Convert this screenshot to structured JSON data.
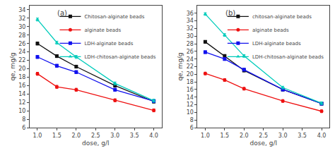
{
  "chart_data": [
    {
      "type": "line",
      "xlabel": "dose, g/l",
      "ylabel": "qe, mg/g",
      "annotations": [
        {
          "text": "(a)"
        }
      ],
      "x": [
        1.0,
        1.5,
        2.0,
        3.0,
        4.0
      ],
      "series": [
        {
          "name": "Chitosan-alginate beads",
          "color": "#111111",
          "marker": "square",
          "values": [
            26.0,
            23.0,
            20.5,
            16.0,
            12.2
          ],
          "errors": [
            0.35,
            0.35,
            0.35,
            0.35,
            0.35
          ]
        },
        {
          "name": "alginate beads",
          "color": "#ee1111",
          "marker": "circle",
          "values": [
            18.8,
            15.7,
            15.0,
            12.5,
            10.1
          ],
          "errors": [
            0.35,
            0.35,
            0.35,
            0.35,
            0.35
          ]
        },
        {
          "name": "LDH-alginate beads",
          "color": "#1111ee",
          "marker": "square",
          "values": [
            22.8,
            20.7,
            19.2,
            15.0,
            12.3
          ],
          "errors": [
            0.35,
            0.35,
            0.35,
            0.35,
            0.35
          ]
        },
        {
          "name": "LDH-chitosan-alginate beads",
          "color": "#00ccbb",
          "marker": "triangle-up",
          "values": [
            31.7,
            26.2,
            22.8,
            16.5,
            12.4
          ],
          "errors": [
            0.35,
            0.35,
            0.35,
            0.35,
            0.35
          ]
        }
      ],
      "xlim": [
        0.8,
        4.2
      ],
      "xticks": [
        {
          "value": 1.0,
          "label": "1.0"
        },
        1.5,
        {
          "value": 2.0,
          "label": "2.0"
        },
        2.5,
        {
          "value": 3.0,
          "label": "3.0"
        },
        3.5,
        {
          "value": 4.0,
          "label": "4.0"
        }
      ],
      "ylim": [
        6,
        35
      ],
      "yticks": [
        6,
        8,
        10,
        12,
        14,
        16,
        18,
        20,
        22,
        24,
        26,
        28,
        30,
        32,
        34
      ],
      "grid": false,
      "legend": "upper right"
    },
    {
      "type": "line",
      "xlabel": "dose, g/l",
      "ylabel": "qe, mg/g",
      "annotations": [
        {
          "text": "(b)"
        }
      ],
      "x": [
        1.0,
        1.5,
        2.0,
        3.0,
        4.0
      ],
      "series": [
        {
          "name": "chitosan-alginate beads",
          "color": "#111111",
          "marker": "square",
          "values": [
            28.5,
            24.8,
            21.0,
            16.0,
            12.3
          ],
          "errors": [
            0.35,
            0.35,
            0.35,
            0.35,
            0.35
          ]
        },
        {
          "name": "alginate beads",
          "color": "#ee1111",
          "marker": "circle",
          "values": [
            20.2,
            18.5,
            16.2,
            13.0,
            10.3
          ],
          "errors": [
            0.35,
            0.35,
            0.35,
            0.35,
            0.35
          ]
        },
        {
          "name": "LDH-alginate beads",
          "color": "#1111ee",
          "marker": "square",
          "values": [
            25.8,
            24.0,
            21.2,
            16.0,
            12.3
          ],
          "errors": [
            0.35,
            0.35,
            0.35,
            0.35,
            0.35
          ]
        },
        {
          "name": "LDH-chitosan-alginate beads",
          "color": "#00ccbb",
          "marker": "triangle-up",
          "values": [
            35.8,
            30.3,
            24.8,
            16.5,
            12.4
          ],
          "errors": [
            0.35,
            0.35,
            0.35,
            0.35,
            0.35
          ]
        }
      ],
      "xlim": [
        0.8,
        4.2
      ],
      "xticks": [
        {
          "value": 1.0,
          "label": "1.0"
        },
        1.5,
        {
          "value": 2.0,
          "label": "2.0"
        },
        2.5,
        {
          "value": 3.0,
          "label": "3.0"
        },
        3.5,
        {
          "value": 4.0,
          "label": "4.0"
        }
      ],
      "ylim": [
        6,
        38
      ],
      "yticks": [
        6,
        8,
        10,
        12,
        14,
        16,
        18,
        20,
        22,
        24,
        26,
        28,
        30,
        32,
        34,
        36
      ],
      "grid": false,
      "legend": "upper right"
    }
  ]
}
